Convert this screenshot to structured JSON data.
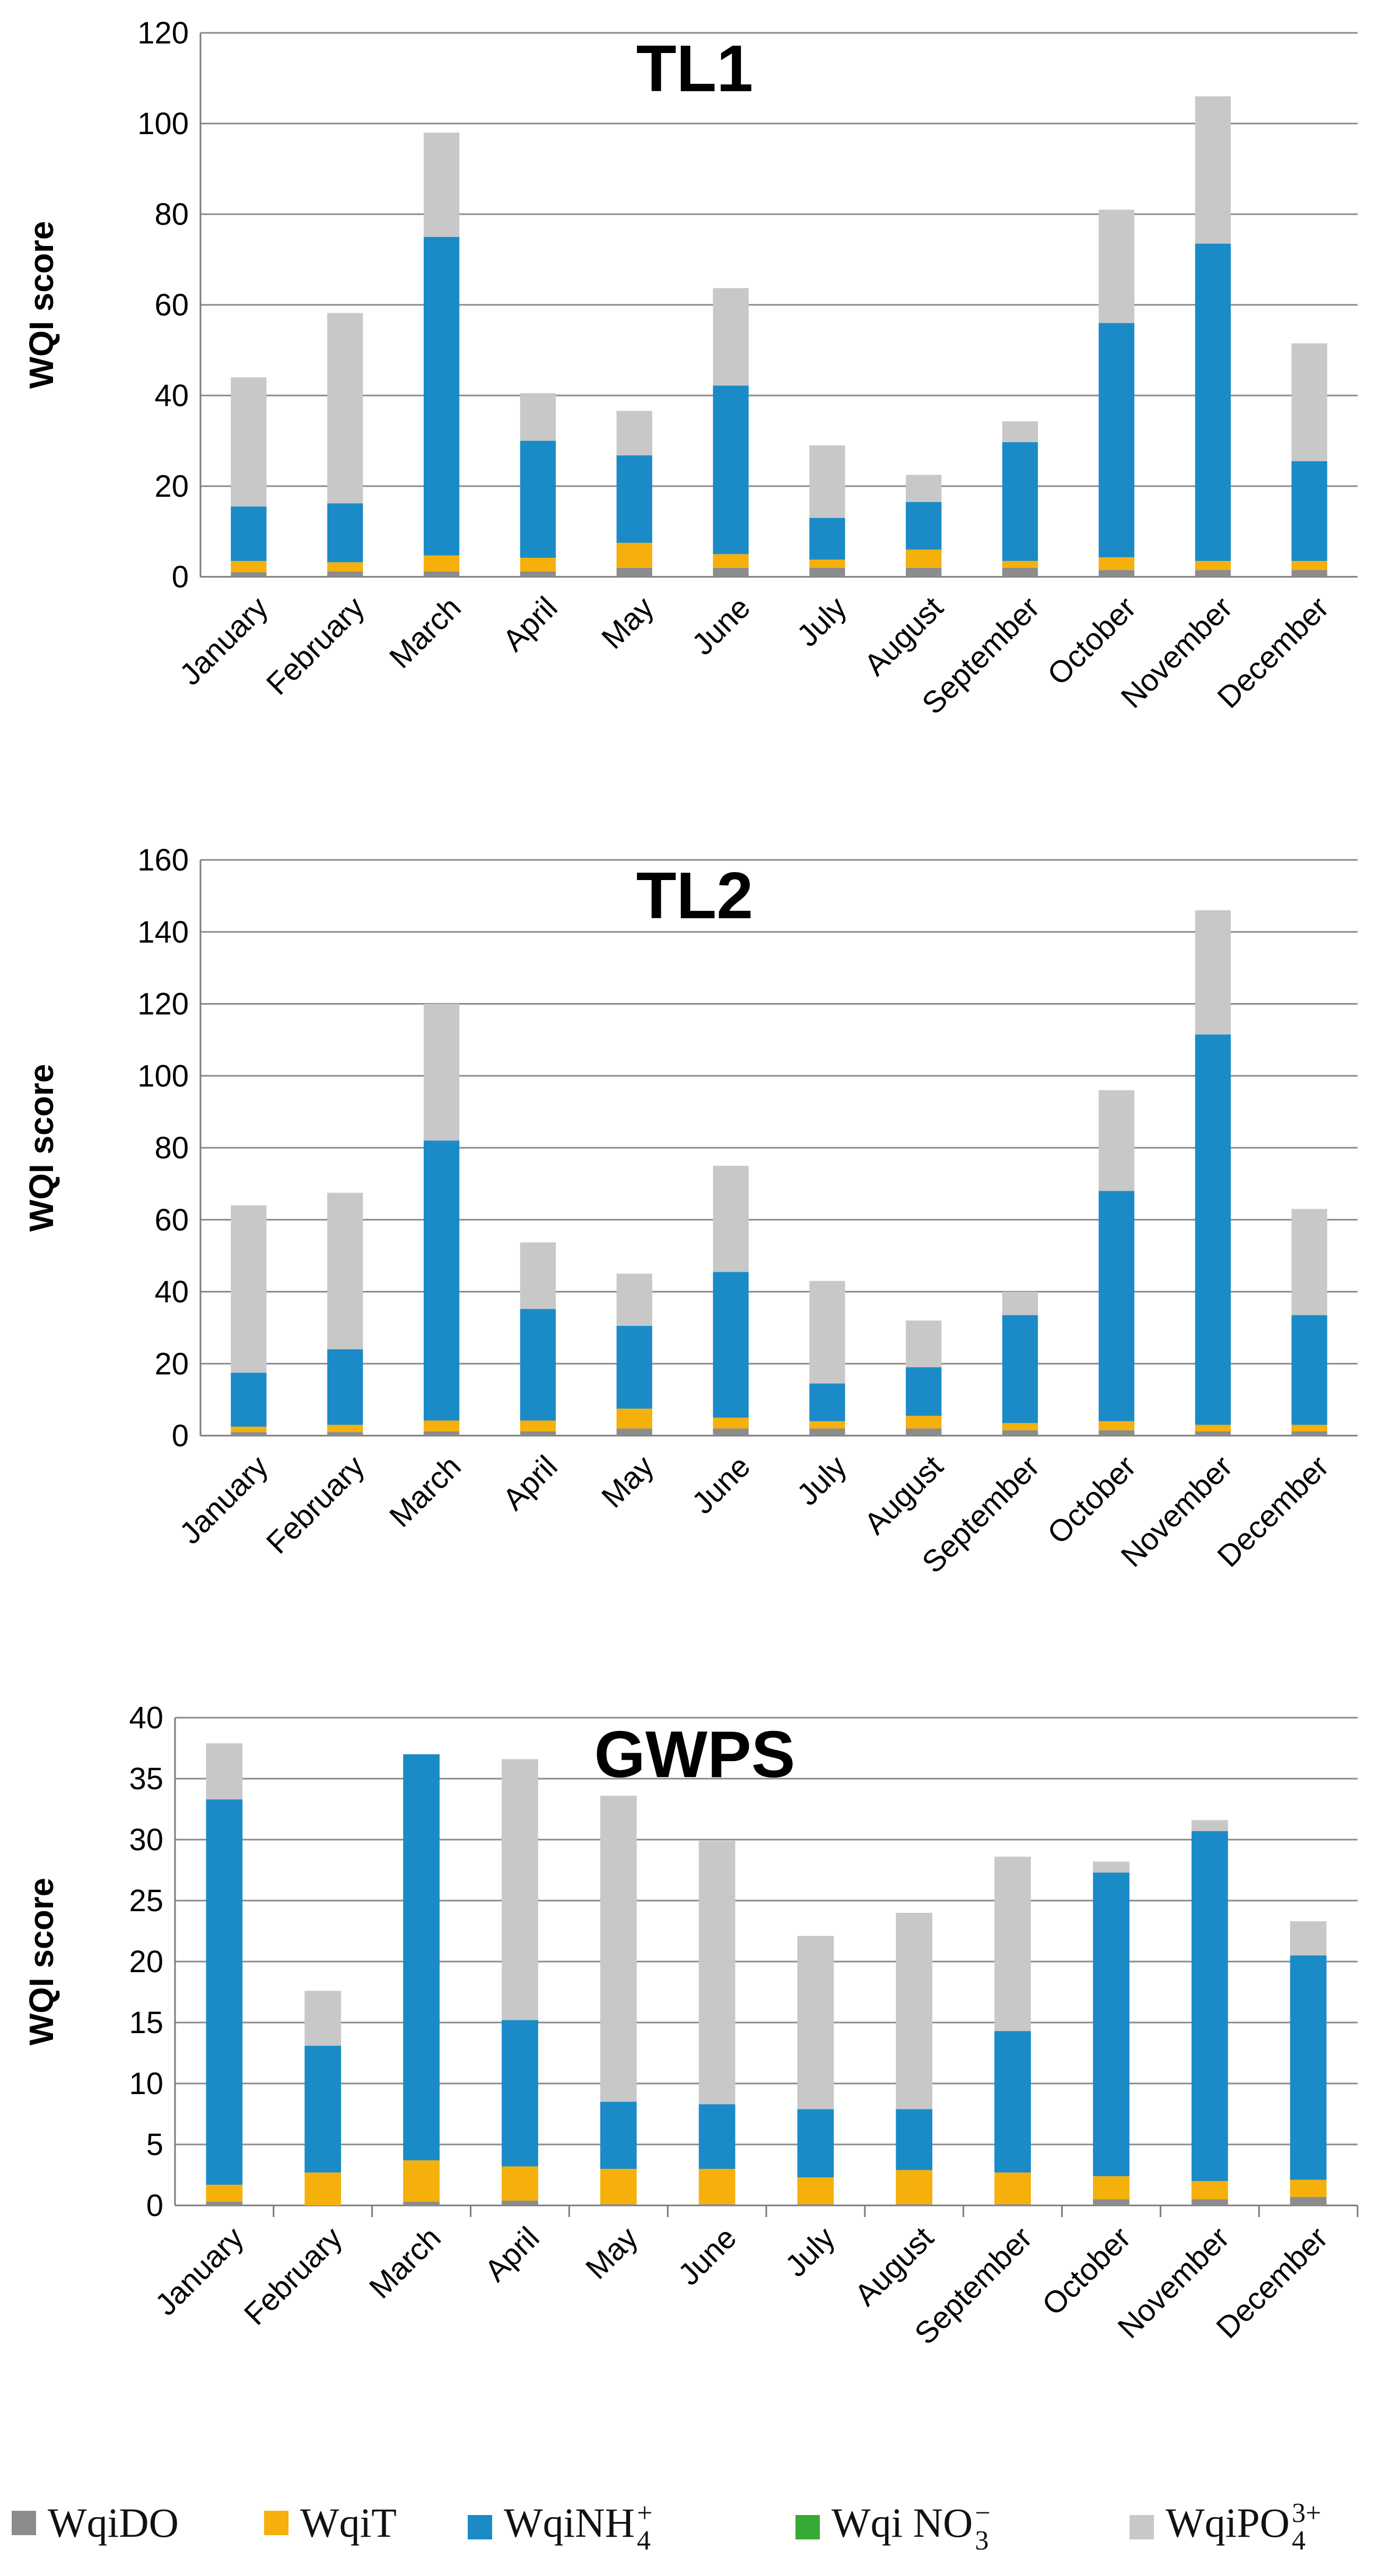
{
  "legend": {
    "items": [
      {
        "key": "do",
        "label": "WqiDO",
        "base": "WqiDO",
        "sub": "",
        "sup": "",
        "color": "#8c8c8c"
      },
      {
        "key": "t",
        "label": "WqiT",
        "base": "WqiT",
        "sub": "",
        "sup": "",
        "color": "#f5b00c"
      },
      {
        "key": "nh4",
        "label": "WqiNH4+",
        "base": "WqiNH",
        "sub": "4",
        "sup": "+",
        "color": "#1a8bc7"
      },
      {
        "key": "no3",
        "label": "Wqi NO3−",
        "base": "Wqi NO",
        "sub": "3",
        "sup": "−",
        "color": "#39a935"
      },
      {
        "key": "po4",
        "label": "WqiPO43+",
        "base": "WqiPO",
        "sub": "4",
        "sup": "3+",
        "color": "#c8c8c8"
      }
    ]
  },
  "chart_data": [
    {
      "type": "bar",
      "stacked": true,
      "title": "TL1",
      "xlabel": "",
      "ylabel": "WQI score",
      "ylim": [
        0,
        120
      ],
      "yticks": [
        0,
        20,
        40,
        60,
        80,
        100,
        120
      ],
      "grid": "horizontal",
      "categories": [
        "January",
        "February",
        "March",
        "April",
        "May",
        "June",
        "July",
        "August",
        "September",
        "October",
        "November",
        "December"
      ],
      "series": [
        {
          "name": "WqiDO",
          "values": [
            1.0,
            1.2,
            1.2,
            1.2,
            2.0,
            2.0,
            2.0,
            2.0,
            2.0,
            1.5,
            1.5,
            1.5
          ]
        },
        {
          "name": "WqiT",
          "values": [
            2.5,
            2.0,
            3.5,
            3.0,
            5.5,
            3.0,
            1.8,
            4.0,
            1.5,
            2.8,
            2.0,
            2.0
          ]
        },
        {
          "name": "WqiNH4+",
          "values": [
            12.0,
            13.0,
            70.3,
            25.8,
            19.3,
            37.2,
            9.2,
            10.5,
            26.2,
            51.7,
            70.0,
            22.0
          ]
        },
        {
          "name": "Wqi NO3−",
          "values": [
            0,
            0,
            0,
            0,
            0,
            0,
            0,
            0,
            0,
            0,
            0,
            0
          ]
        },
        {
          "name": "WqiPO43+",
          "values": [
            28.5,
            42.0,
            23.0,
            10.5,
            9.8,
            21.5,
            16.0,
            6.0,
            4.6,
            25.0,
            32.5,
            26.0
          ]
        }
      ]
    },
    {
      "type": "bar",
      "stacked": true,
      "title": "TL2",
      "xlabel": "",
      "ylabel": "WQI score",
      "ylim": [
        0,
        160
      ],
      "yticks": [
        0,
        20,
        40,
        60,
        80,
        100,
        120,
        140,
        160
      ],
      "grid": "horizontal",
      "categories": [
        "January",
        "February",
        "March",
        "April",
        "May",
        "June",
        "July",
        "August",
        "September",
        "October",
        "November",
        "December"
      ],
      "series": [
        {
          "name": "WqiDO",
          "values": [
            1.0,
            1.0,
            1.2,
            1.2,
            2.0,
            2.0,
            2.0,
            2.0,
            1.5,
            1.5,
            1.2,
            1.2
          ]
        },
        {
          "name": "WqiT",
          "values": [
            1.5,
            2.0,
            3.0,
            3.0,
            5.5,
            3.0,
            2.0,
            3.5,
            2.0,
            2.5,
            1.8,
            1.8
          ]
        },
        {
          "name": "WqiNH4+",
          "values": [
            15.0,
            21.0,
            77.8,
            31.0,
            23.0,
            40.5,
            10.5,
            13.5,
            30.0,
            64.0,
            108.5,
            30.5
          ]
        },
        {
          "name": "Wqi NO3−",
          "values": [
            0,
            0,
            0,
            0,
            0,
            0,
            0,
            0,
            0,
            0,
            0,
            0
          ]
        },
        {
          "name": "WqiPO43+",
          "values": [
            46.5,
            43.5,
            38.0,
            18.5,
            14.5,
            29.5,
            28.5,
            13.0,
            6.5,
            28.0,
            34.5,
            29.5
          ]
        }
      ]
    },
    {
      "type": "bar",
      "stacked": true,
      "title": "GWPS",
      "xlabel": "",
      "ylabel": "WQI score",
      "ylim": [
        0,
        40
      ],
      "yticks": [
        0,
        5,
        10,
        15,
        20,
        25,
        30,
        35,
        40
      ],
      "grid": "horizontal",
      "categories": [
        "January",
        "February",
        "March",
        "April",
        "May",
        "June",
        "July",
        "August",
        "September",
        "October",
        "November",
        "December"
      ],
      "series": [
        {
          "name": "WqiDO",
          "values": [
            0.3,
            0.0,
            0.3,
            0.4,
            0.1,
            0.1,
            0.1,
            0.1,
            0.1,
            0.5,
            0.5,
            0.7
          ]
        },
        {
          "name": "WqiT",
          "values": [
            1.4,
            2.7,
            3.4,
            2.8,
            2.9,
            2.9,
            2.2,
            2.8,
            2.6,
            1.9,
            1.5,
            1.4
          ]
        },
        {
          "name": "WqiNH4+",
          "values": [
            31.6,
            10.4,
            33.3,
            12.0,
            5.5,
            5.3,
            5.6,
            5.0,
            11.6,
            24.9,
            28.7,
            18.4
          ]
        },
        {
          "name": "Wqi NO3−",
          "values": [
            0,
            0,
            0,
            0,
            0,
            0,
            0,
            0,
            0,
            0,
            0,
            0
          ]
        },
        {
          "name": "WqiPO43+",
          "values": [
            4.6,
            4.5,
            0.0,
            21.4,
            25.1,
            21.6,
            14.2,
            16.1,
            14.3,
            0.9,
            0.9,
            2.8
          ]
        }
      ]
    }
  ]
}
